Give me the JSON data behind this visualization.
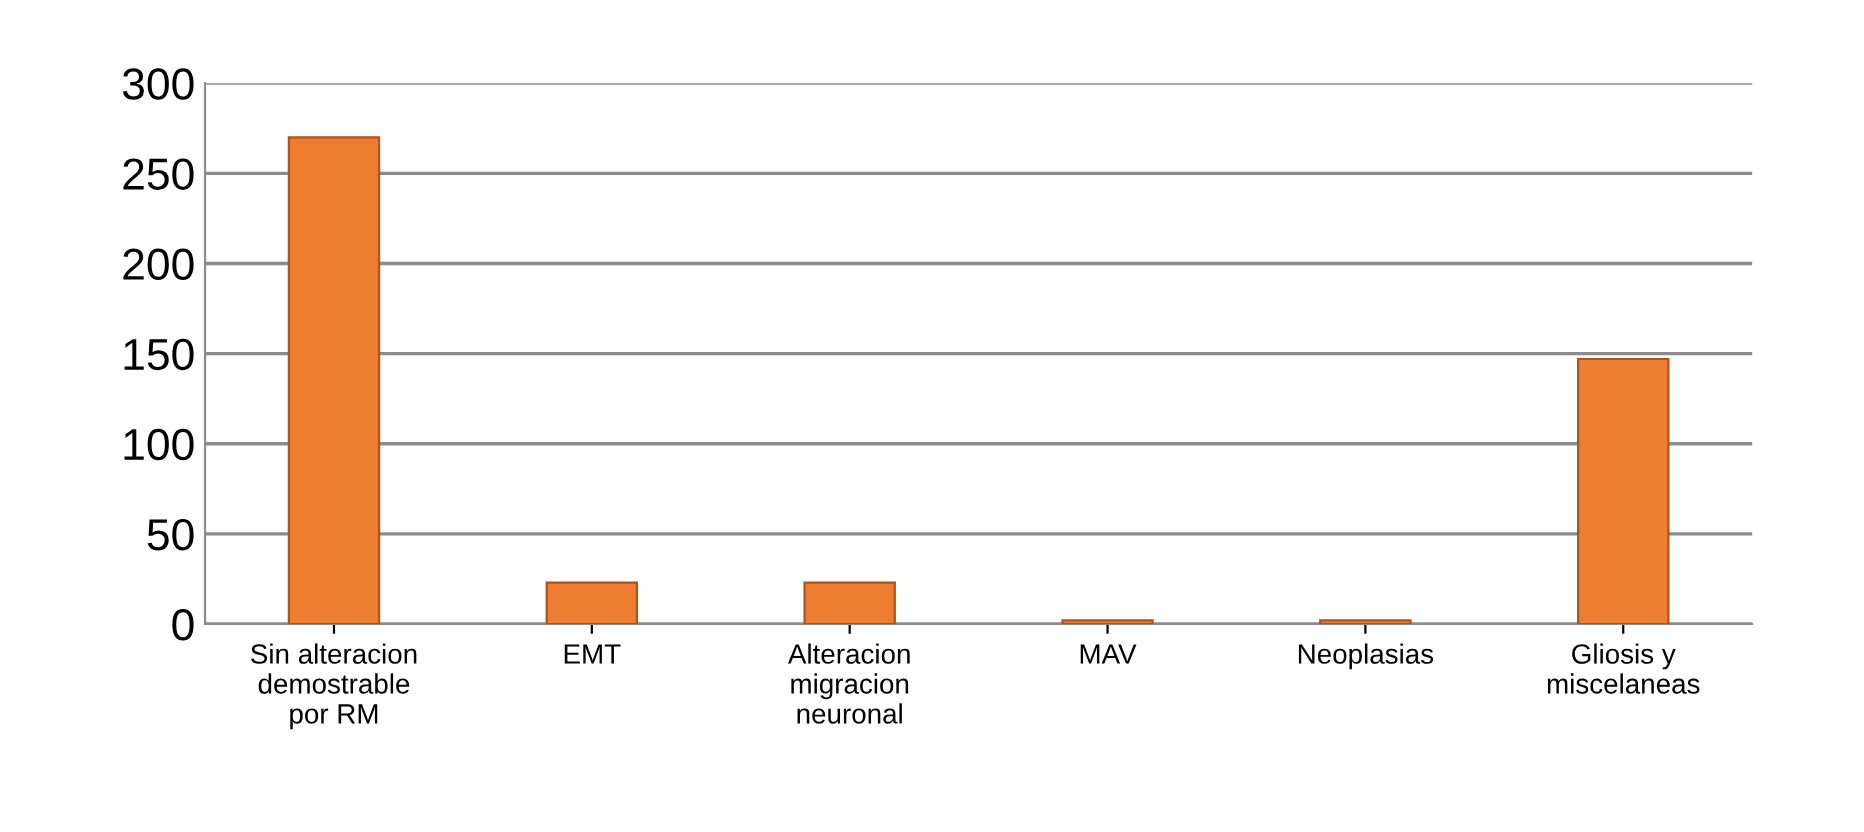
{
  "chart_data": {
    "type": "bar",
    "categories": [
      "Sin alteracion\ndemostrable\npor RM",
      "EMT",
      "Alteracion\nmigracion\nneuronal",
      "MAV",
      "Neoplasias",
      "Gliosis y\nmiscelaneas"
    ],
    "values": [
      270,
      23,
      23,
      2,
      2,
      147
    ],
    "color": "#ed7d31",
    "ylim": [
      0,
      300
    ],
    "yticks": [
      0,
      50,
      100,
      150,
      200,
      250,
      300
    ],
    "grid": "y"
  }
}
